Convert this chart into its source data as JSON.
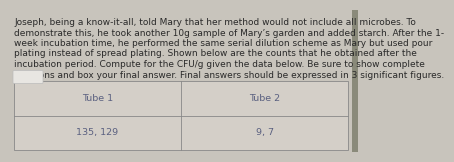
{
  "paragraph_lines": [
    "Joseph, being a know-it-all, told Mary that her method would not include all microbes. To",
    "demonstrate this, he took another 10g sample of Mary’s garden and added starch. After the 1-",
    "week incubation time, he performed the same serial dilution scheme as Mary but used pour",
    "plating instead of spread plating. Shown below are the counts that he obtained after the",
    "incubation period. Compute for the CFU/g given the data below. Be sure to show complete",
    "solutions and box your final answer. Final answers should be expressed in 3 significant figures."
  ],
  "table_headers": [
    "Tube 1",
    "Tube 2"
  ],
  "table_values": [
    "135, 129",
    "9, 7"
  ],
  "bg_color": "#c8c4bc",
  "text_color": "#2a2a2a",
  "table_text_color": "#5a6080",
  "font_size_paragraph": 6.5,
  "font_size_table": 6.8,
  "table_bg": "#d4cfc8",
  "white_box_color": "#e8e6e2",
  "white_box_edge": "#bbbbbb",
  "table_line_color": "#888888",
  "right_bar_color": "#8a8a7a"
}
